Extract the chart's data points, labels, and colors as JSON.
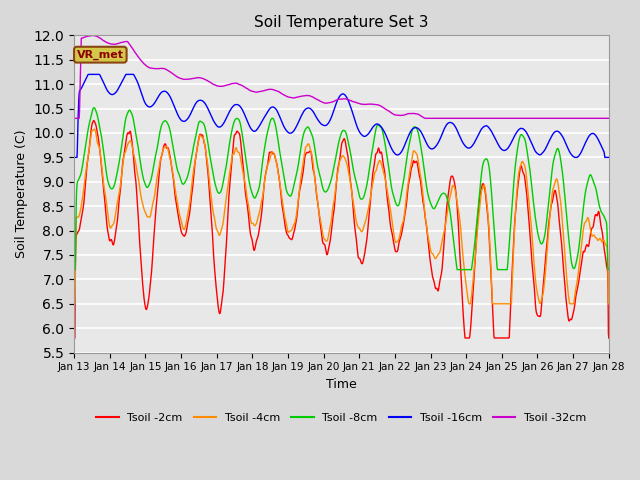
{
  "title": "Soil Temperature Set 3",
  "xlabel": "Time",
  "ylabel": "Soil Temperature (C)",
  "ylim": [
    5.5,
    12.0
  ],
  "yticks": [
    5.5,
    6.0,
    6.5,
    7.0,
    7.5,
    8.0,
    8.5,
    9.0,
    9.5,
    10.0,
    10.5,
    11.0,
    11.5,
    12.0
  ],
  "colors": {
    "Tsoil -2cm": "#ff0000",
    "Tsoil -4cm": "#ff8c00",
    "Tsoil -8cm": "#00cc00",
    "Tsoil -16cm": "#0000ff",
    "Tsoil -32cm": "#cc00cc"
  },
  "vr_met_label": "VR_met",
  "vr_met_color": "#8B0000",
  "vr_met_bg": "#d4c84a",
  "background_color": "#d9d9d9",
  "plot_bg_color": "#e8e8e8",
  "grid_color": "#ffffff",
  "x_labels": [
    "Jan 13",
    "Jan 14",
    "Jan 15",
    "Jan 16",
    "Jan 17",
    "Jan 18",
    "Jan 19",
    "Jan 20",
    "Jan 21",
    "Jan 22",
    "Jan 23",
    "Jan 24",
    "Jan 25",
    "Jan 26",
    "Jan 27",
    "Jan 28"
  ],
  "legend_entries": [
    "Tsoil -2cm",
    "Tsoil -4cm",
    "Tsoil -8cm",
    "Tsoil -16cm",
    "Tsoil -32cm"
  ]
}
